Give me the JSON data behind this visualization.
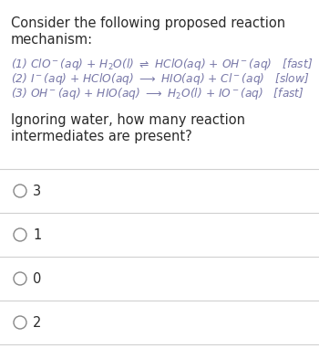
{
  "title_line1": "Consider the following proposed reaction",
  "title_line2": "mechanism:",
  "bg_color": "#ffffff",
  "text_color": "#2b2b2b",
  "reaction_color": "#7878a8",
  "question_color": "#2b2b2b",
  "option_color": "#2b2b2b",
  "divider_color": "#d0d0d0",
  "circle_color": "#888888",
  "title_fontsize": 10.5,
  "reaction_fontsize": 8.8,
  "question_fontsize": 10.5,
  "option_fontsize": 10.5,
  "options": [
    "3",
    "1",
    "0",
    "2"
  ]
}
